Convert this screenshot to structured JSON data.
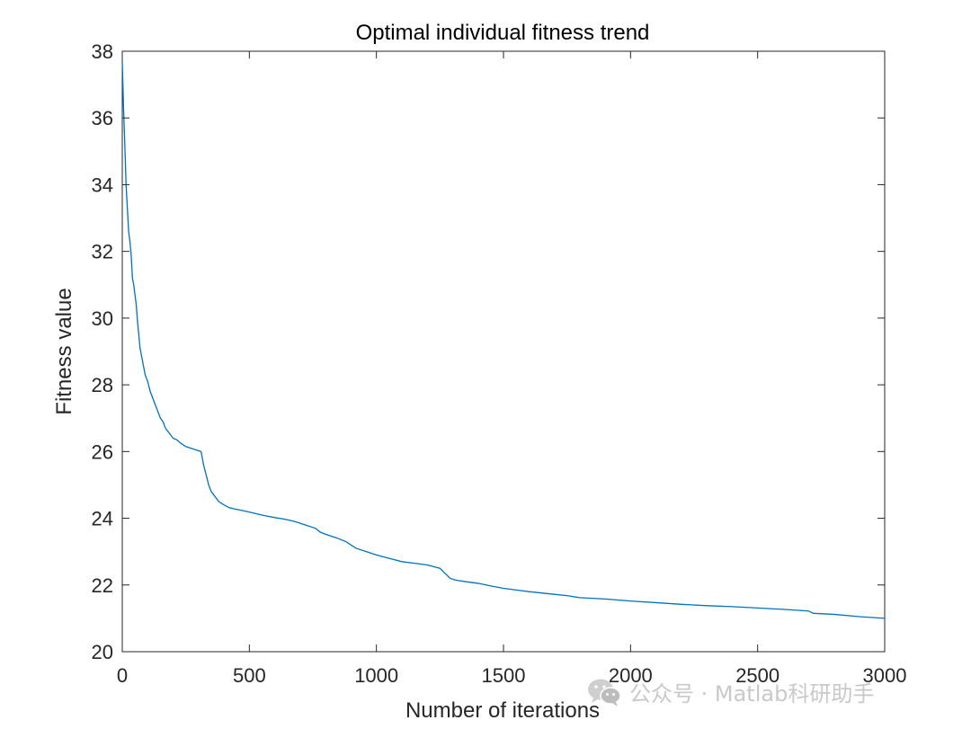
{
  "chart_data": {
    "type": "line",
    "title": "Optimal individual fitness trend",
    "xlabel": "Number of iterations",
    "ylabel": "Fitness value",
    "xlim": [
      0,
      3000
    ],
    "ylim": [
      20,
      38
    ],
    "xticks": [
      0,
      500,
      1000,
      1500,
      2000,
      2500,
      3000
    ],
    "yticks": [
      20,
      22,
      24,
      26,
      28,
      30,
      32,
      34,
      36,
      38
    ],
    "grid": false,
    "legend": "none",
    "series": [
      {
        "color": "#0072BD",
        "x": [
          0,
          5,
          10,
          15,
          20,
          25,
          30,
          35,
          40,
          45,
          50,
          55,
          60,
          65,
          70,
          75,
          80,
          85,
          90,
          100,
          110,
          120,
          130,
          140,
          150,
          160,
          170,
          180,
          190,
          200,
          215,
          230,
          250,
          270,
          290,
          310,
          320,
          330,
          340,
          350,
          360,
          380,
          400,
          420,
          440,
          480,
          520,
          560,
          600,
          640,
          680,
          720,
          760,
          780,
          800,
          840,
          880,
          920,
          960,
          1000,
          1050,
          1100,
          1150,
          1200,
          1250,
          1270,
          1290,
          1310,
          1350,
          1400,
          1450,
          1500,
          1550,
          1600,
          1650,
          1700,
          1750,
          1800,
          1900,
          2000,
          2100,
          2200,
          2300,
          2400,
          2500,
          2600,
          2700,
          2720,
          2800,
          2900,
          3000
        ],
        "y": [
          37.7,
          36.3,
          35.2,
          34.0,
          33.3,
          32.6,
          32.3,
          31.9,
          31.2,
          31.0,
          30.7,
          30.4,
          29.9,
          29.5,
          29.1,
          28.9,
          28.7,
          28.5,
          28.3,
          28.1,
          27.8,
          27.6,
          27.4,
          27.2,
          27.0,
          26.9,
          26.7,
          26.6,
          26.5,
          26.4,
          26.35,
          26.25,
          26.15,
          26.1,
          26.05,
          26.0,
          25.6,
          25.3,
          25.0,
          24.8,
          24.7,
          24.5,
          24.4,
          24.32,
          24.28,
          24.22,
          24.15,
          24.08,
          24.02,
          23.97,
          23.9,
          23.8,
          23.7,
          23.58,
          23.52,
          23.42,
          23.3,
          23.1,
          23.0,
          22.9,
          22.8,
          22.7,
          22.65,
          22.6,
          22.5,
          22.35,
          22.2,
          22.15,
          22.1,
          22.05,
          21.97,
          21.9,
          21.85,
          21.8,
          21.76,
          21.72,
          21.68,
          21.62,
          21.58,
          21.52,
          21.47,
          21.42,
          21.38,
          21.35,
          21.31,
          21.27,
          21.22,
          21.15,
          21.12,
          21.05,
          21.0
        ]
      }
    ]
  },
  "watermark": {
    "icon": "wechat-icon",
    "text": "公众号 · Matlab科研助手"
  }
}
